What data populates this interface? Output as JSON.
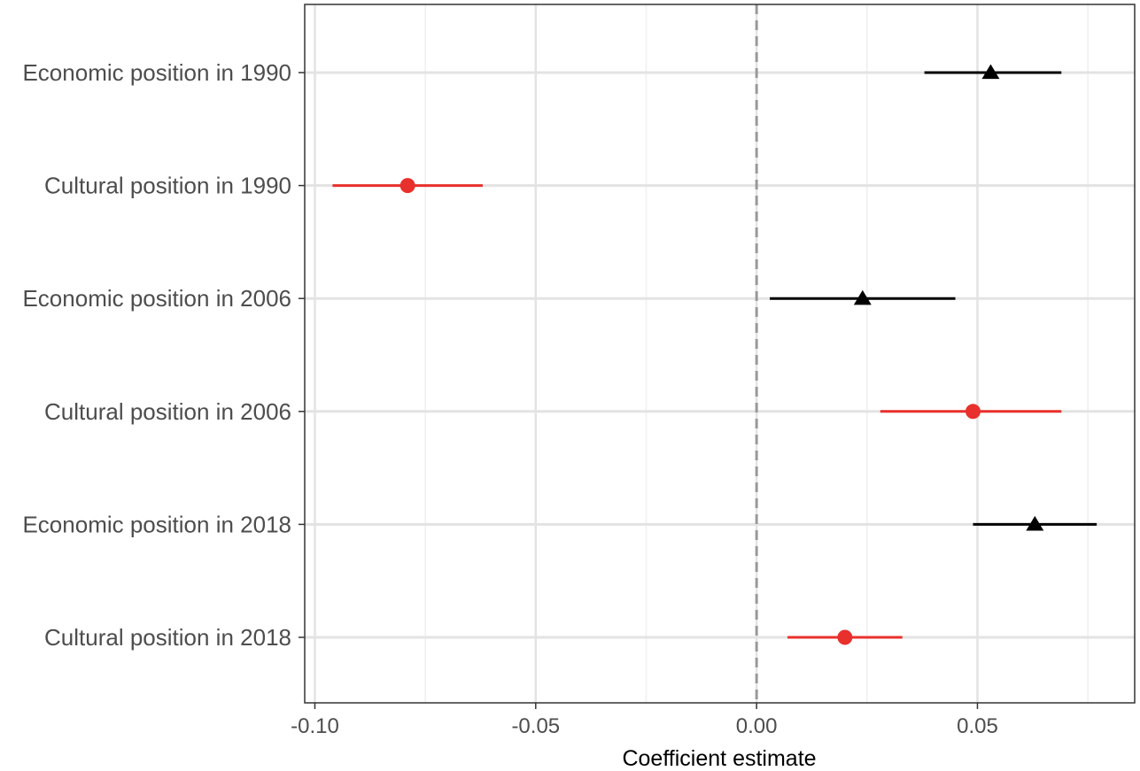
{
  "chart_data": {
    "type": "scatter",
    "subtype": "coefficient-plot",
    "title": "",
    "xlabel": "Coefficient estimate",
    "ylabel": "",
    "xlim": [
      -0.1023,
      0.0856
    ],
    "x_ticks": [
      -0.1,
      -0.05,
      0.0,
      0.05
    ],
    "x_tick_labels": [
      "-0.10",
      "-0.05",
      "0.00",
      "0.05"
    ],
    "reference_line": {
      "x": 0,
      "style": "dashed",
      "color": "#999999"
    },
    "grid": true,
    "legend": "none",
    "categories": [
      "Economic position in 1990",
      "Cultural position in 1990",
      "Economic position in 2006",
      "Cultural position in 2006",
      "Economic position in 2018",
      "Cultural position in 2018"
    ],
    "points": [
      {
        "estimate": 0.053,
        "ci_low": 0.038,
        "ci_high": 0.069,
        "marker": "triangle",
        "color": "#000000"
      },
      {
        "estimate": -0.079,
        "ci_low": -0.096,
        "ci_high": -0.062,
        "marker": "circle",
        "color": "#e8302c"
      },
      {
        "estimate": 0.024,
        "ci_low": 0.003,
        "ci_high": 0.045,
        "marker": "triangle",
        "color": "#000000"
      },
      {
        "estimate": 0.049,
        "ci_low": 0.028,
        "ci_high": 0.069,
        "marker": "circle",
        "color": "#e8302c"
      },
      {
        "estimate": 0.063,
        "ci_low": 0.049,
        "ci_high": 0.077,
        "marker": "triangle",
        "color": "#000000"
      },
      {
        "estimate": 0.02,
        "ci_low": 0.007,
        "ci_high": 0.033,
        "marker": "circle",
        "color": "#e8302c"
      }
    ]
  }
}
